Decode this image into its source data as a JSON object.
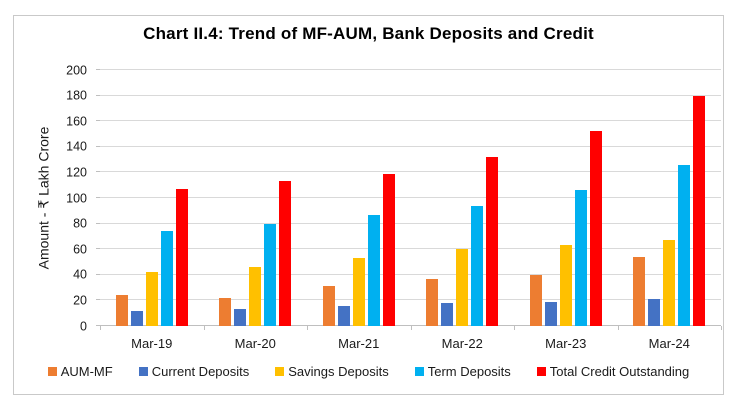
{
  "chart_data": {
    "type": "bar",
    "title": "Chart II.4: Trend of MF-AUM, Bank Deposits and Credit",
    "xlabel": "",
    "ylabel": "Amount - ₹ Lakh Crore",
    "ylim": [
      0,
      200
    ],
    "ytick_step": 20,
    "yticks": [
      0,
      20,
      40,
      60,
      80,
      100,
      120,
      140,
      160,
      180,
      200
    ],
    "grid": true,
    "legend_position": "bottom",
    "categories": [
      "Mar-19",
      "Mar-20",
      "Mar-21",
      "Mar-22",
      "Mar-23",
      "Mar-24"
    ],
    "series": [
      {
        "name": "AUM-MF",
        "color": "#ED7D31",
        "values": [
          24,
          22,
          31,
          37,
          40,
          54
        ]
      },
      {
        "name": "Current Deposits",
        "color": "#4472C4",
        "values": [
          12,
          13,
          16,
          18,
          19,
          21
        ]
      },
      {
        "name": "Savings Deposits",
        "color": "#FFC000",
        "values": [
          42,
          46,
          53,
          60,
          63,
          67
        ]
      },
      {
        "name": "Term Deposits",
        "color": "#00B0F0",
        "values": [
          74,
          80,
          87,
          94,
          106,
          126
        ]
      },
      {
        "name": "Total Credit Outstanding",
        "color": "#FF0000",
        "values": [
          107,
          113,
          119,
          132,
          152,
          180
        ]
      }
    ]
  },
  "colors": {
    "gridline": "#D9D9D9",
    "axis": "#BFBFBF",
    "border": "#C9C9C9",
    "text": "#000000"
  }
}
